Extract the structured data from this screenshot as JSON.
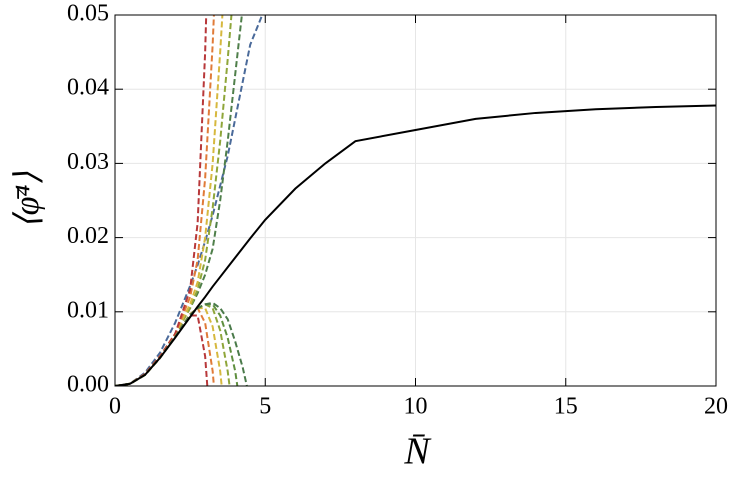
{
  "chart_data": {
    "type": "line",
    "x_label": "N̄",
    "y_label": "⟨φ̄⁴⟩",
    "x": [
      0,
      0.5,
      1,
      1.5,
      2,
      2.5,
      2.75,
      3,
      3.25,
      3.5,
      3.75,
      4,
      4.25,
      4.5,
      5,
      6,
      7,
      8,
      10,
      12,
      14,
      16,
      18,
      20
    ],
    "series": [
      {
        "color": "#4a6a9a",
        "dash": true,
        "values": [
          0,
          0.0003,
          0.0018,
          0.0045,
          0.0085,
          0.0135,
          0.0163,
          0.0195,
          0.023,
          0.027,
          0.031,
          0.036,
          0.041,
          0.046,
          0.051,
          null,
          null,
          null,
          null,
          null,
          null,
          null,
          null,
          null
        ]
      },
      {
        "color": "#4f7f4a",
        "dash": true,
        "values": [
          0,
          0.0003,
          0.0016,
          0.004,
          0.007,
          0.0105,
          0.0125,
          0.015,
          0.0185,
          0.025,
          0.033,
          0.042,
          0.051,
          null,
          null,
          null,
          null,
          null,
          null,
          null,
          null,
          null,
          null,
          null
        ]
      },
      {
        "color": "#8fa63a",
        "dash": true,
        "values": [
          0,
          0.0003,
          0.0016,
          0.004,
          0.007,
          0.0105,
          0.013,
          0.017,
          0.024,
          0.033,
          0.044,
          0.056,
          null,
          null,
          null,
          null,
          null,
          null,
          null,
          null,
          null,
          null,
          null,
          null
        ]
      },
      {
        "color": "#d6b83e",
        "dash": true,
        "values": [
          0,
          0.0003,
          0.0016,
          0.004,
          0.007,
          0.011,
          0.014,
          0.02,
          0.03,
          0.045,
          0.062,
          null,
          null,
          null,
          null,
          null,
          null,
          null,
          null,
          null,
          null,
          null,
          null,
          null
        ]
      },
      {
        "color": "#e07b39",
        "dash": true,
        "values": [
          0,
          0.0003,
          0.0016,
          0.004,
          0.007,
          0.012,
          0.017,
          0.028,
          0.046,
          0.07,
          null,
          null,
          null,
          null,
          null,
          null,
          null,
          null,
          null,
          null,
          null,
          null,
          null,
          null
        ]
      },
      {
        "color": "#b8383a",
        "dash": true,
        "values": [
          0,
          0.0003,
          0.0016,
          0.004,
          0.007,
          0.013,
          0.022,
          0.045,
          0.08,
          null,
          null,
          null,
          null,
          null,
          null,
          null,
          null,
          null,
          null,
          null,
          null,
          null,
          null,
          null
        ]
      },
      {
        "color": "#b8383a",
        "dash": true,
        "values": [
          0,
          0.0003,
          0.0015,
          0.0038,
          0.0068,
          0.0095,
          0.0095,
          0.004,
          -0.01,
          null,
          null,
          null,
          null,
          null,
          null,
          null,
          null,
          null,
          null,
          null,
          null,
          null,
          null,
          null
        ]
      },
      {
        "color": "#e07b39",
        "dash": true,
        "values": [
          0,
          0.0003,
          0.0015,
          0.0038,
          0.0067,
          0.0097,
          0.0105,
          0.0085,
          0.002,
          -0.01,
          null,
          null,
          null,
          null,
          null,
          null,
          null,
          null,
          null,
          null,
          null,
          null,
          null,
          null
        ]
      },
      {
        "color": "#d6b83e",
        "dash": true,
        "values": [
          0,
          0.0003,
          0.0015,
          0.0038,
          0.0066,
          0.0096,
          0.0105,
          0.0105,
          0.008,
          0.002,
          -0.008,
          null,
          null,
          null,
          null,
          null,
          null,
          null,
          null,
          null,
          null,
          null,
          null,
          null
        ]
      },
      {
        "color": "#8fa63a",
        "dash": true,
        "values": [
          0,
          0.0003,
          0.0015,
          0.0038,
          0.0066,
          0.0096,
          0.0105,
          0.011,
          0.0105,
          0.0075,
          0.002,
          -0.006,
          null,
          null,
          null,
          null,
          null,
          null,
          null,
          null,
          null,
          null,
          null,
          null
        ]
      },
      {
        "color": "#5f8f3f",
        "dash": true,
        "values": [
          0,
          0.0003,
          0.0015,
          0.0038,
          0.0066,
          0.0096,
          0.0105,
          0.011,
          0.011,
          0.0095,
          0.0065,
          0.002,
          -0.005,
          null,
          null,
          null,
          null,
          null,
          null,
          null,
          null,
          null,
          null,
          null
        ]
      },
      {
        "color": "#4a7a4a",
        "dash": true,
        "values": [
          0,
          0.0003,
          0.0015,
          0.0038,
          0.0066,
          0.0096,
          0.0105,
          0.011,
          0.0112,
          0.0105,
          0.009,
          0.006,
          0.0025,
          -0.002,
          null,
          null,
          null,
          null,
          null,
          null,
          null,
          null,
          null,
          null
        ]
      },
      {
        "color": "#000000",
        "dash": false,
        "values": [
          0,
          0.0003,
          0.0015,
          0.0038,
          0.0065,
          0.0093,
          0.0107,
          0.012,
          0.0134,
          0.0147,
          0.016,
          0.0173,
          0.0186,
          0.0199,
          0.0224,
          0.0266,
          0.03,
          0.033,
          0.0345,
          0.036,
          0.0368,
          0.0373,
          0.0376,
          0.0378
        ]
      }
    ],
    "xlim": [
      0,
      20
    ],
    "xticks": [
      0,
      5,
      10,
      15,
      20
    ],
    "ylim": [
      0,
      0.05
    ],
    "yticks": [
      {
        "value": 0,
        "label": "0.00"
      },
      0.01,
      0.02,
      0.03,
      0.04,
      0.05
    ],
    "grid": true
  }
}
